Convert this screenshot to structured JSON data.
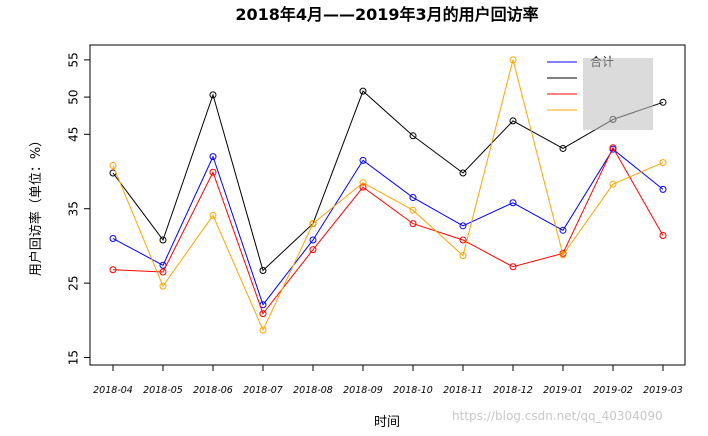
{
  "chart_data": {
    "type": "line",
    "title": "2018年4月——2019年3月的用户回访率",
    "xlabel": "时间",
    "ylabel": "用户回访率（单位：%）",
    "ylim": [
      14,
      57
    ],
    "yticks": [
      15,
      25,
      35,
      45,
      50,
      55
    ],
    "grid": false,
    "legend_position": "top-right",
    "categories": [
      "2018-04",
      "2018-05",
      "2018-06",
      "2018-07",
      "2018-08",
      "2018-09",
      "2018-10",
      "2018-11",
      "2018-12",
      "2019-01",
      "2019-02",
      "2019-03"
    ],
    "series": [
      {
        "name": "合计",
        "color": "#0000ff",
        "values": [
          31.0,
          27.4,
          42.0,
          22.1,
          30.8,
          41.5,
          36.5,
          32.7,
          35.8,
          32.1,
          43.0,
          37.6
        ]
      },
      {
        "name": "",
        "color": "#000000",
        "values": [
          39.8,
          30.8,
          50.3,
          26.7,
          33.0,
          50.8,
          44.8,
          39.8,
          46.8,
          43.1,
          47.0,
          49.3
        ]
      },
      {
        "name": "",
        "color": "#ff0000",
        "values": [
          26.8,
          26.5,
          39.9,
          20.9,
          29.5,
          37.9,
          33.0,
          30.8,
          27.2,
          29.0,
          43.2,
          31.4
        ]
      },
      {
        "name": "",
        "color": "#ffa500",
        "values": [
          40.8,
          24.6,
          34.1,
          18.7,
          33.0,
          38.5,
          34.8,
          28.7,
          55.0,
          28.8,
          38.3,
          41.2
        ]
      }
    ]
  },
  "watermark": "https://blog.csdn.net/qq_40304090"
}
